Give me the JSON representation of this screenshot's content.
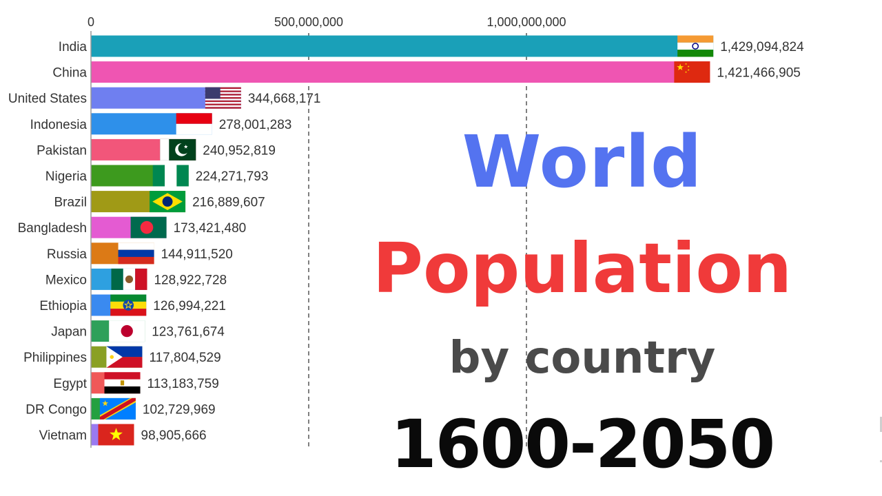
{
  "title": {
    "line1": "World",
    "line2": "Population",
    "line3": "by country",
    "line4": "1600-2050",
    "colors": {
      "line1": "#5473f0",
      "line2": "#f03a3a",
      "line3": "#4a4a4a",
      "line4": "#0a0a0a"
    }
  },
  "chart_data": {
    "type": "bar",
    "orientation": "horizontal",
    "xlim": [
      0,
      1450000000
    ],
    "x_ticks": [
      {
        "value": 0,
        "label": "0"
      },
      {
        "value": 500000000,
        "label": "500,000,000"
      },
      {
        "value": 1000000000,
        "label": "1,000,000,000"
      }
    ],
    "grid": "dashed-vertical",
    "categories": [
      "India",
      "China",
      "United States",
      "Indonesia",
      "Pakistan",
      "Nigeria",
      "Brazil",
      "Bangladesh",
      "Russia",
      "Mexico",
      "Ethiopia",
      "Japan",
      "Philippines",
      "Egypt",
      "DR Congo",
      "Vietnam"
    ],
    "values": [
      1429094824,
      1421466905,
      344668171,
      278001283,
      240952819,
      224271793,
      216889607,
      173421480,
      144911520,
      128922728,
      126994221,
      123761674,
      117804529,
      113183759,
      102729969,
      98905666
    ],
    "value_labels": [
      "1,429,094,824",
      "1,421,466,905",
      "344,668,171",
      "278,001,283",
      "240,952,819",
      "224,271,793",
      "216,889,607",
      "173,421,480",
      "144,911,520",
      "128,922,728",
      "126,994,221",
      "123,761,674",
      "117,804,529",
      "113,183,759",
      "102,729,969",
      "98,905,666"
    ],
    "bar_colors": [
      "#1aa0b8",
      "#ef55b2",
      "#6f7ff0",
      "#2e90ea",
      "#f2567a",
      "#3d9a1e",
      "#a09a16",
      "#e45bd2",
      "#dc7a16",
      "#2ea0e0",
      "#3a8af0",
      "#2ea05a",
      "#8aa024",
      "#f05858",
      "#24a040",
      "#9a7af0"
    ],
    "flags": [
      "india-flag",
      "china-flag",
      "united-states-flag",
      "indonesia-flag",
      "pakistan-flag",
      "nigeria-flag",
      "brazil-flag",
      "bangladesh-flag",
      "russia-flag",
      "mexico-flag",
      "ethiopia-flag",
      "japan-flag",
      "philippines-flag",
      "egypt-flag",
      "dr-congo-flag",
      "vietnam-flag"
    ]
  }
}
